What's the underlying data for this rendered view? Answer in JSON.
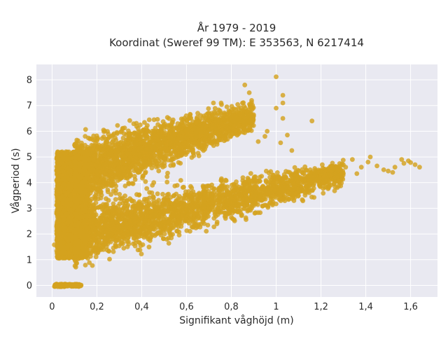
{
  "chart_data": {
    "type": "scatter",
    "title": [
      "År 1979 - 2019",
      "Koordinat (Sweref 99 TM): E 353563, N 6217414"
    ],
    "xlabel": "Signifikant våghöjd (m)",
    "ylabel": "Vågperiod (s)",
    "xlim": [
      -0.07,
      1.72
    ],
    "ylim": [
      -0.45,
      8.6
    ],
    "grid": true,
    "marker_color": "#D4A21E",
    "plot_background": "#E9E9F1",
    "x_ticks": [
      0,
      0.2,
      0.4,
      0.6,
      0.8,
      1.0,
      1.2,
      1.4,
      1.6
    ],
    "x_tick_labels": [
      "0",
      "0,2",
      "0,4",
      "0,6",
      "0,8",
      "1",
      "1,2",
      "1,4",
      "1,6"
    ],
    "y_ticks": [
      0,
      1,
      2,
      3,
      4,
      5,
      6,
      7,
      8
    ],
    "y_tick_labels": [
      "0",
      "1",
      "2",
      "3",
      "4",
      "5",
      "6",
      "7",
      "8"
    ],
    "clusters": [
      {
        "x_range": [
          0.01,
          0.13
        ],
        "y_range": [
          -0.05,
          0.05
        ],
        "count": 140
      },
      {
        "x_range": [
          0.02,
          0.16
        ],
        "y_range": [
          1.05,
          5.2
        ],
        "count": 2200
      },
      {
        "x_center_range": [
          0.1,
          1.3
        ],
        "y_center_from": 2.0,
        "y_center_to": 4.35,
        "spread": 0.55,
        "count": 2600
      },
      {
        "x_center_range": [
          0.1,
          0.9
        ],
        "y_center_from": 4.4,
        "y_center_to": 6.6,
        "spread": 0.6,
        "count": 2400
      }
    ],
    "outliers": [
      [
        0.01,
        1.58
      ],
      [
        1.0,
        8.12
      ],
      [
        0.86,
        7.8
      ],
      [
        0.88,
        7.5
      ],
      [
        1.03,
        7.4
      ],
      [
        1.03,
        7.1
      ],
      [
        1.0,
        6.9
      ],
      [
        1.03,
        6.5
      ],
      [
        1.16,
        6.4
      ],
      [
        1.05,
        5.85
      ],
      [
        1.02,
        5.55
      ],
      [
        1.07,
        5.25
      ],
      [
        1.34,
        4.9
      ],
      [
        1.42,
        5.0
      ],
      [
        1.45,
        4.65
      ],
      [
        1.48,
        4.5
      ],
      [
        1.53,
        4.6
      ],
      [
        1.56,
        4.9
      ],
      [
        1.57,
        4.75
      ],
      [
        1.59,
        4.85
      ],
      [
        1.6,
        4.78
      ],
      [
        1.62,
        4.7
      ],
      [
        1.64,
        4.6
      ],
      [
        1.52,
        4.4
      ],
      [
        1.5,
        4.45
      ],
      [
        1.38,
        4.6
      ],
      [
        1.41,
        4.8
      ],
      [
        1.36,
        4.35
      ],
      [
        1.29,
        4.3
      ],
      [
        1.31,
        4.6
      ],
      [
        0.72,
        7.1
      ],
      [
        0.78,
        6.95
      ],
      [
        0.65,
        6.7
      ],
      [
        0.92,
        5.6
      ],
      [
        0.95,
        5.8
      ],
      [
        0.96,
        6.0
      ]
    ]
  }
}
